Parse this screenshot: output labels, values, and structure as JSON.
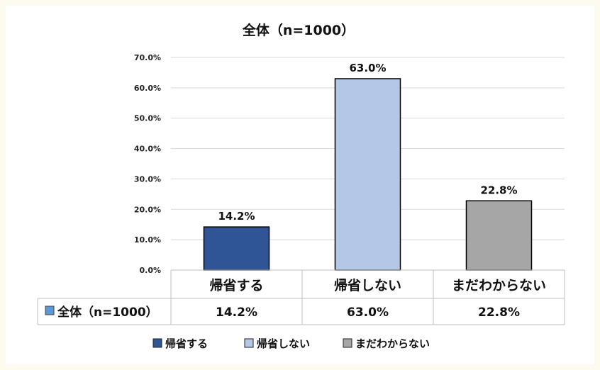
{
  "chart_data": {
    "type": "bar",
    "title": "全体（n=1000）",
    "categories": [
      "帰省する",
      "帰省しない",
      "まだわからない"
    ],
    "series": [
      {
        "name": "全体（n=1000）",
        "values": [
          14.2,
          63.0,
          22.8
        ]
      }
    ],
    "value_labels": [
      "14.2%",
      "63.0%",
      "22.8%"
    ],
    "bar_colors": [
      "#2f5597",
      "#b4c7e7",
      "#a6a6a6"
    ],
    "y_ticks": [
      "0.0%",
      "10.0%",
      "20.0%",
      "30.0%",
      "40.0%",
      "50.0%",
      "60.0%",
      "70.0%"
    ],
    "ylim": [
      0,
      70
    ],
    "grid": true,
    "data_table": true,
    "legend": {
      "position": "bottom",
      "items": [
        "帰省する",
        "帰省しない",
        "まだわからない"
      ]
    }
  }
}
